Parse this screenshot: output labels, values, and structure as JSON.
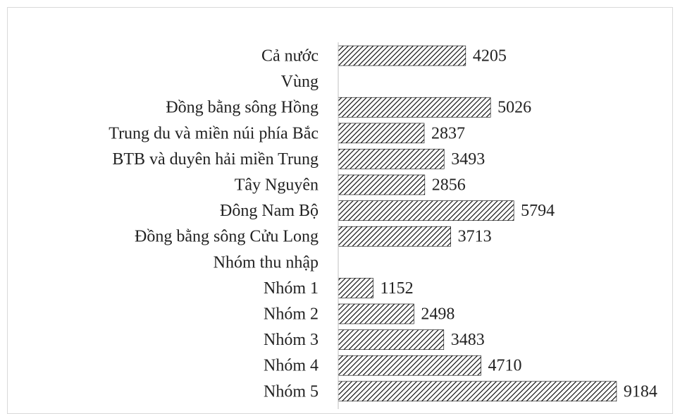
{
  "chart_data": {
    "type": "barh",
    "categories": [
      "Cả nước",
      "Vùng",
      "Đồng bằng sông Hồng",
      "Trung du và miền núi phía Bắc",
      "BTB và duyên hải miền Trung",
      "Tây Nguyên",
      "Đông Nam Bộ",
      "Đồng bằng sông Cửu Long",
      "Nhóm thu nhập",
      "Nhóm 1",
      "Nhóm 2",
      "Nhóm 3",
      "Nhóm 4",
      "Nhóm 5"
    ],
    "values": [
      4205,
      null,
      5026,
      2837,
      3493,
      2856,
      5794,
      3713,
      null,
      1152,
      2498,
      3483,
      4710,
      9184
    ],
    "color": "#000000",
    "xlim": [
      0,
      10000
    ]
  }
}
